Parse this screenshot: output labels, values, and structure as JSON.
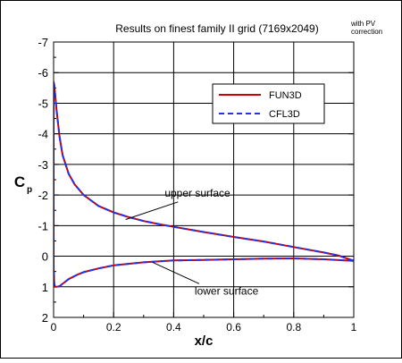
{
  "chart_data": {
    "type": "line",
    "title": "Results on finest family II grid (7169x2049)",
    "note": [
      "with PV",
      "correction"
    ],
    "xlabel": "x/c",
    "ylabel": "C",
    "ylabel_sub": "p",
    "xlim": [
      0,
      1
    ],
    "ylim": [
      2,
      -7
    ],
    "y_inverted": true,
    "grid": true,
    "legend_placement": "upper-right",
    "x_ticks": [
      {
        "v": 0,
        "label": "0"
      },
      {
        "v": 0.2,
        "label": "0.2"
      },
      {
        "v": 0.4,
        "label": "0.4"
      },
      {
        "v": 0.6,
        "label": "0.6"
      },
      {
        "v": 0.8,
        "label": "0.8"
      },
      {
        "v": 1,
        "label": "1"
      }
    ],
    "y_ticks": [
      {
        "v": -7,
        "label": "-7"
      },
      {
        "v": -6,
        "label": "-6"
      },
      {
        "v": -5,
        "label": "-5"
      },
      {
        "v": -4,
        "label": "-4"
      },
      {
        "v": -3,
        "label": "-3"
      },
      {
        "v": -2,
        "label": "-2"
      },
      {
        "v": -1,
        "label": "-1"
      },
      {
        "v": 0,
        "label": "0"
      },
      {
        "v": 1,
        "label": "1"
      },
      {
        "v": 2,
        "label": "2"
      }
    ],
    "series": [
      {
        "name": "FUN3D",
        "color": "#cc0000",
        "style": "solid",
        "x": [
          1.0,
          0.95,
          0.9,
          0.8,
          0.7,
          0.6,
          0.5,
          0.4,
          0.35,
          0.3,
          0.25,
          0.2,
          0.15,
          0.1,
          0.07,
          0.05,
          0.03,
          0.02,
          0.01,
          0.005,
          0.002,
          0.0,
          0.0,
          0.002,
          0.005,
          0.01,
          0.02,
          0.03,
          0.05,
          0.08,
          0.1,
          0.15,
          0.2,
          0.3,
          0.4,
          0.5,
          0.6,
          0.7,
          0.8,
          0.9,
          1.0
        ],
        "y": [
          0.15,
          -0.02,
          -0.12,
          -0.3,
          -0.48,
          -0.63,
          -0.79,
          -0.96,
          -1.05,
          -1.15,
          -1.28,
          -1.43,
          -1.64,
          -2.0,
          -2.35,
          -2.7,
          -3.3,
          -3.9,
          -4.75,
          -5.3,
          -5.6,
          -5.7,
          0.4,
          0.9,
          1.0,
          1.0,
          0.98,
          0.9,
          0.75,
          0.6,
          0.52,
          0.4,
          0.3,
          0.2,
          0.14,
          0.12,
          0.1,
          0.08,
          0.07,
          0.1,
          0.15
        ]
      },
      {
        "name": "CFL3D",
        "color": "#2233ee",
        "style": "dashed",
        "x": [
          1.0,
          0.95,
          0.9,
          0.8,
          0.7,
          0.6,
          0.5,
          0.4,
          0.35,
          0.3,
          0.25,
          0.2,
          0.15,
          0.1,
          0.07,
          0.05,
          0.03,
          0.02,
          0.01,
          0.005,
          0.002,
          0.0,
          0.0,
          0.002,
          0.005,
          0.01,
          0.02,
          0.03,
          0.05,
          0.08,
          0.1,
          0.15,
          0.2,
          0.3,
          0.4,
          0.5,
          0.6,
          0.7,
          0.8,
          0.9,
          1.0
        ],
        "y": [
          0.15,
          -0.02,
          -0.12,
          -0.3,
          -0.48,
          -0.63,
          -0.79,
          -0.96,
          -1.05,
          -1.15,
          -1.28,
          -1.43,
          -1.64,
          -2.0,
          -2.35,
          -2.7,
          -3.3,
          -3.9,
          -4.75,
          -5.3,
          -5.6,
          -5.7,
          0.4,
          0.9,
          1.0,
          1.0,
          0.98,
          0.9,
          0.75,
          0.6,
          0.52,
          0.4,
          0.3,
          0.2,
          0.14,
          0.12,
          0.1,
          0.08,
          0.07,
          0.1,
          0.15
        ]
      }
    ],
    "annotations": [
      {
        "text": "upper surface",
        "x": 0.37,
        "y": -1.95,
        "arrow_to": [
          0.24,
          -1.2
        ]
      },
      {
        "text": "lower surface",
        "x": 0.47,
        "y": 1.25,
        "arrow_to": [
          0.33,
          0.2
        ]
      }
    ]
  }
}
